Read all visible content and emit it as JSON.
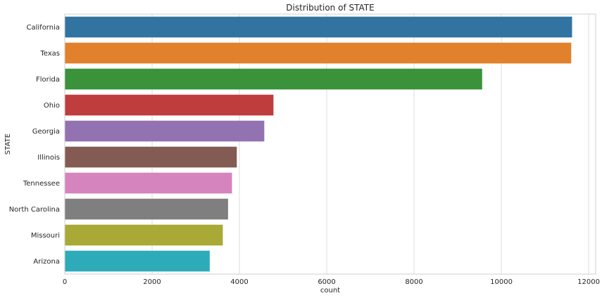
{
  "chart_data": {
    "type": "bar",
    "orientation": "horizontal",
    "title": "Distribution of STATE",
    "xlabel": "count",
    "ylabel": "STATE",
    "categories": [
      "California",
      "Texas",
      "Florida",
      "Ohio",
      "Georgia",
      "Illinois",
      "Tennessee",
      "North Carolina",
      "Missouri",
      "Arizona"
    ],
    "values": [
      11620,
      11600,
      9560,
      4780,
      4570,
      3940,
      3830,
      3740,
      3620,
      3320
    ],
    "colors": [
      "#3274a1",
      "#e1812c",
      "#3a923a",
      "#c03d3e",
      "#9372b2",
      "#845b53",
      "#d684bd",
      "#7f7f7f",
      "#a9aa35",
      "#2eabb8"
    ],
    "xlim": [
      0,
      12160
    ],
    "xticks": [
      0,
      2000,
      4000,
      6000,
      8000,
      10000,
      12000
    ],
    "xtick_labels": [
      "0",
      "2000",
      "4000",
      "6000",
      "8000",
      "10000",
      "12000"
    ],
    "grid": true,
    "legend": false
  }
}
